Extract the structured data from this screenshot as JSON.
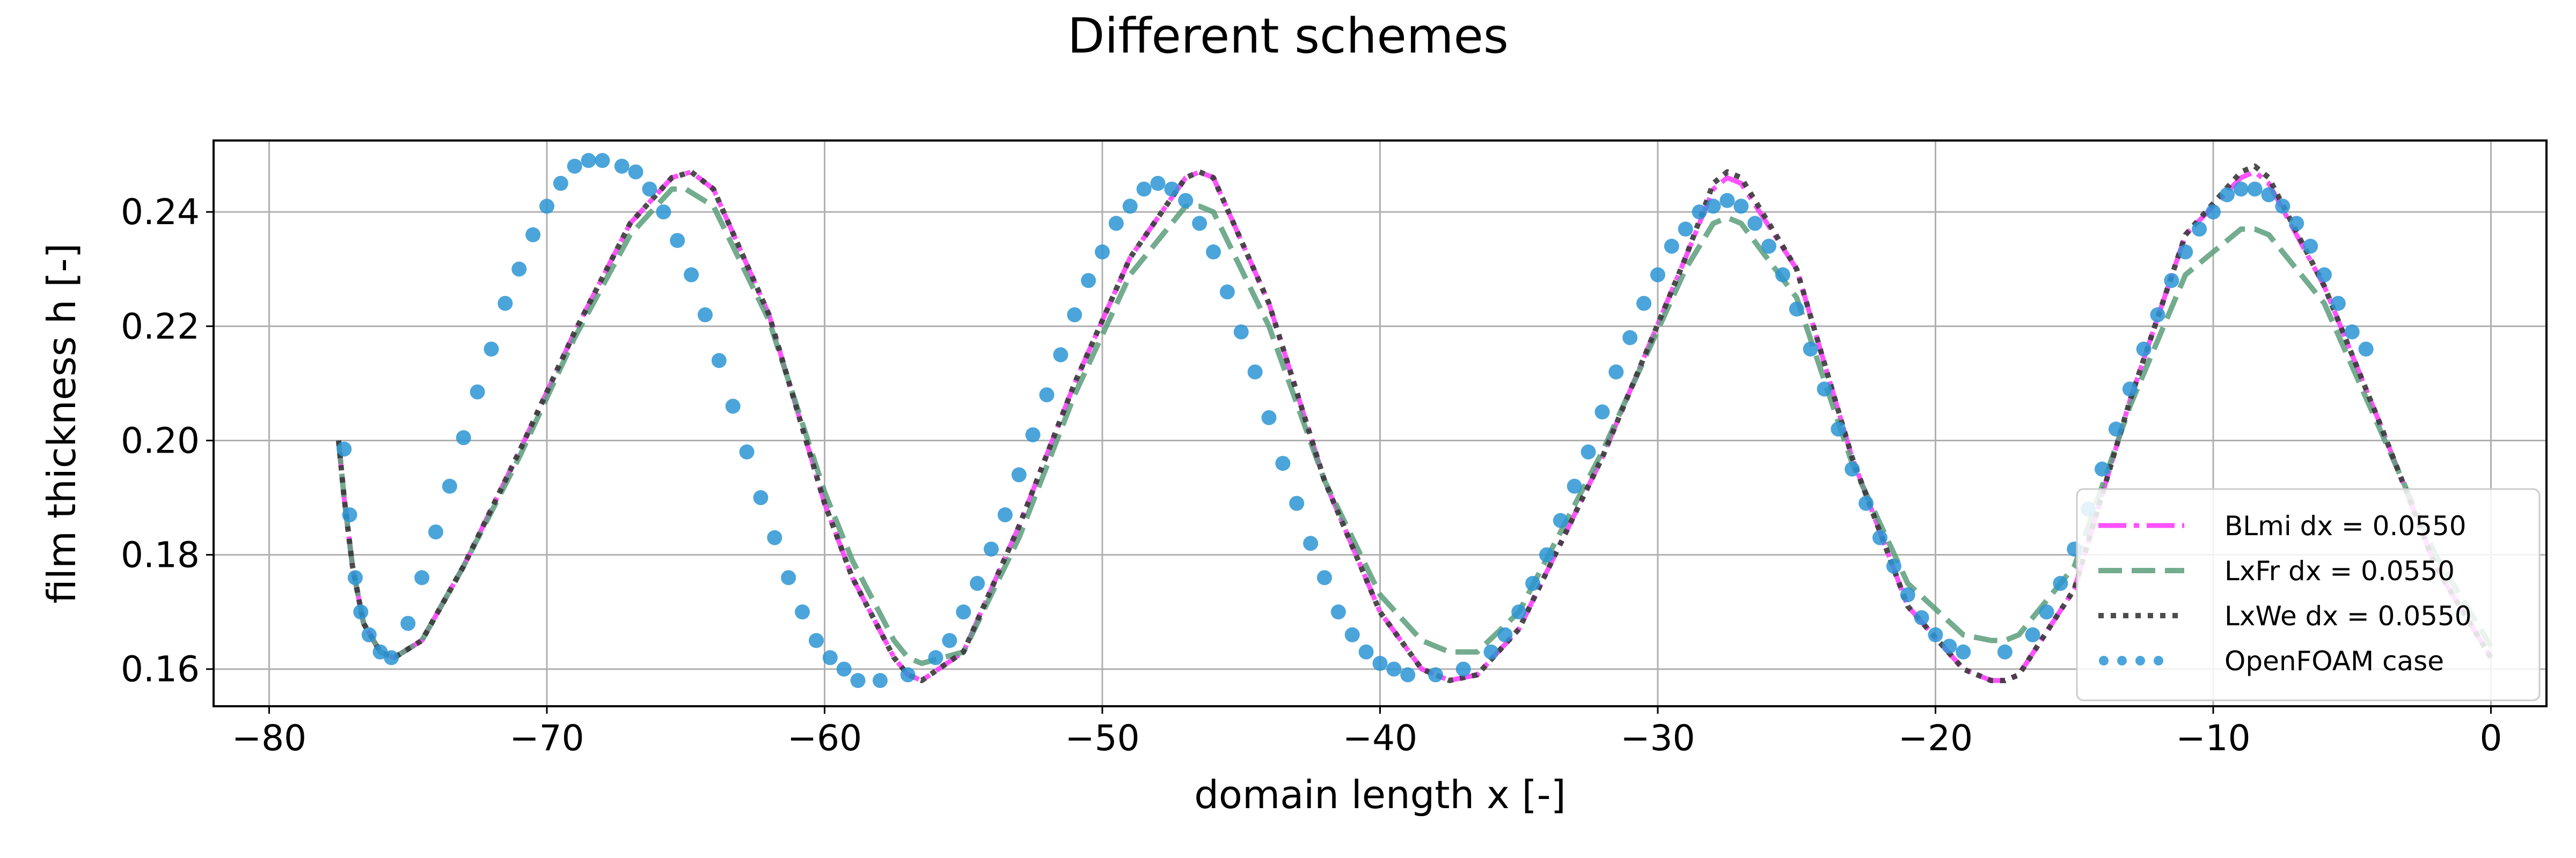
{
  "chart_data": {
    "type": "line",
    "title": "Different schemes",
    "xlabel": "domain length x [-]",
    "ylabel": "film thickness h [-]",
    "xlim": [
      -82,
      2
    ],
    "ylim": [
      0.1535,
      0.2525
    ],
    "xticks": [
      -80,
      -70,
      -60,
      -50,
      -40,
      -30,
      -20,
      -10,
      0
    ],
    "yticks": [
      0.16,
      0.18,
      0.2,
      0.22,
      0.24
    ],
    "xtick_labels": [
      "−80",
      "−70",
      "−60",
      "−50",
      "−40",
      "−30",
      "−20",
      "−10",
      "0"
    ],
    "ytick_labels": [
      "0.16",
      "0.18",
      "0.20",
      "0.22",
      "0.24"
    ],
    "grid": true,
    "legend_position": "lower-right",
    "series": [
      {
        "name": "BLmi dx = 0.0550",
        "color": "#ff33ff",
        "style": "dashdot",
        "x": [
          -77.5,
          -77.3,
          -77.0,
          -76.6,
          -76.0,
          -75.5,
          -74.5,
          -73.0,
          -71.0,
          -69.0,
          -67.0,
          -65.5,
          -64.8,
          -64.0,
          -62.0,
          -60.0,
          -59.0,
          -57.5,
          -57.0,
          -56.5,
          -55.0,
          -53.0,
          -51.0,
          -49.0,
          -47.0,
          -46.5,
          -46.0,
          -44.0,
          -42.0,
          -40.0,
          -38.5,
          -37.5,
          -36.5,
          -35.0,
          -32.0,
          -29.0,
          -28.0,
          -27.5,
          -27.0,
          -25.0,
          -23.0,
          -21.0,
          -19.0,
          -18.0,
          -17.5,
          -17.0,
          -15.0,
          -13.0,
          -11.0,
          -9.0,
          -8.5,
          -8.0,
          -6.0,
          -4.0,
          -2.0,
          0.0
        ],
        "y": [
          0.2,
          0.19,
          0.178,
          0.168,
          0.163,
          0.162,
          0.165,
          0.178,
          0.198,
          0.219,
          0.238,
          0.246,
          0.247,
          0.244,
          0.222,
          0.189,
          0.176,
          0.162,
          0.159,
          0.158,
          0.163,
          0.185,
          0.21,
          0.232,
          0.246,
          0.247,
          0.246,
          0.224,
          0.193,
          0.17,
          0.16,
          0.158,
          0.159,
          0.167,
          0.197,
          0.232,
          0.244,
          0.246,
          0.245,
          0.23,
          0.197,
          0.171,
          0.16,
          0.158,
          0.158,
          0.159,
          0.174,
          0.207,
          0.236,
          0.246,
          0.247,
          0.245,
          0.227,
          0.203,
          0.178,
          0.162
        ]
      },
      {
        "name": "LxFr dx = 0.0550",
        "color": "#5a9e7a",
        "style": "dashed",
        "x": [
          -77.5,
          -77.3,
          -77.0,
          -76.6,
          -76.0,
          -75.5,
          -74.5,
          -73.0,
          -71.0,
          -69.0,
          -67.0,
          -65.5,
          -65.0,
          -64.0,
          -62.0,
          -60.0,
          -59.0,
          -57.5,
          -57.0,
          -56.5,
          -55.0,
          -53.0,
          -51.0,
          -49.0,
          -47.0,
          -46.5,
          -46.0,
          -44.0,
          -42.0,
          -40.0,
          -38.5,
          -37.5,
          -36.5,
          -35.0,
          -32.0,
          -29.0,
          -28.0,
          -27.5,
          -27.0,
          -25.0,
          -23.0,
          -21.0,
          -19.0,
          -18.0,
          -17.5,
          -17.0,
          -15.0,
          -13.0,
          -11.0,
          -9.0,
          -8.5,
          -8.0,
          -6.0,
          -4.0,
          -2.0,
          0.0
        ],
        "y": [
          0.2,
          0.19,
          0.178,
          0.168,
          0.163,
          0.162,
          0.165,
          0.178,
          0.197,
          0.218,
          0.236,
          0.244,
          0.244,
          0.241,
          0.221,
          0.191,
          0.179,
          0.165,
          0.162,
          0.161,
          0.163,
          0.183,
          0.208,
          0.229,
          0.241,
          0.241,
          0.24,
          0.22,
          0.193,
          0.173,
          0.165,
          0.163,
          0.163,
          0.17,
          0.198,
          0.23,
          0.238,
          0.239,
          0.238,
          0.225,
          0.196,
          0.175,
          0.166,
          0.165,
          0.165,
          0.166,
          0.178,
          0.206,
          0.229,
          0.237,
          0.237,
          0.236,
          0.224,
          0.202,
          0.18,
          0.164
        ]
      },
      {
        "name": "LxWe dx = 0.0550",
        "color": "#3a3a3a",
        "style": "dotted",
        "x": [
          -77.5,
          -77.3,
          -77.0,
          -76.6,
          -76.0,
          -75.5,
          -74.5,
          -73.0,
          -71.0,
          -69.0,
          -67.0,
          -65.5,
          -64.8,
          -64.0,
          -62.0,
          -60.0,
          -59.0,
          -57.5,
          -57.0,
          -56.5,
          -55.0,
          -53.0,
          -51.0,
          -49.0,
          -47.0,
          -46.5,
          -46.0,
          -44.0,
          -42.0,
          -40.0,
          -38.5,
          -37.5,
          -36.5,
          -35.0,
          -32.0,
          -29.0,
          -28.0,
          -27.5,
          -27.0,
          -25.0,
          -23.0,
          -21.0,
          -19.0,
          -18.0,
          -17.5,
          -17.0,
          -15.0,
          -13.0,
          -11.0,
          -9.0,
          -8.5,
          -8.0,
          -6.0,
          -4.0,
          -2.0,
          0.0
        ],
        "y": [
          0.2,
          0.19,
          0.178,
          0.168,
          0.163,
          0.162,
          0.165,
          0.178,
          0.198,
          0.219,
          0.238,
          0.246,
          0.247,
          0.244,
          0.222,
          0.189,
          0.176,
          0.162,
          0.159,
          0.158,
          0.163,
          0.185,
          0.21,
          0.232,
          0.246,
          0.247,
          0.246,
          0.224,
          0.193,
          0.17,
          0.16,
          0.158,
          0.159,
          0.167,
          0.197,
          0.232,
          0.245,
          0.247,
          0.246,
          0.23,
          0.197,
          0.171,
          0.16,
          0.158,
          0.158,
          0.159,
          0.174,
          0.207,
          0.236,
          0.247,
          0.248,
          0.246,
          0.227,
          0.203,
          0.178,
          0.162
        ]
      },
      {
        "name": "OpenFOAM case",
        "color": "#2b95d5",
        "style": "markers",
        "x": [
          -77.3,
          -77.1,
          -76.9,
          -76.7,
          -76.4,
          -76.0,
          -75.6,
          -75.0,
          -74.5,
          -74.0,
          -73.5,
          -73.0,
          -72.5,
          -72.0,
          -71.5,
          -71.0,
          -70.5,
          -70.0,
          -69.5,
          -69.0,
          -68.5,
          -68.0,
          -67.3,
          -66.8,
          -66.3,
          -65.8,
          -65.3,
          -64.8,
          -64.3,
          -63.8,
          -63.3,
          -62.8,
          -62.3,
          -61.8,
          -61.3,
          -60.8,
          -60.3,
          -59.8,
          -59.3,
          -58.8,
          -58.0,
          -57.0,
          -56.0,
          -55.5,
          -55.0,
          -54.5,
          -54.0,
          -53.5,
          -53.0,
          -52.5,
          -52.0,
          -51.5,
          -51.0,
          -50.5,
          -50.0,
          -49.5,
          -49.0,
          -48.5,
          -48.0,
          -47.5,
          -47.0,
          -46.5,
          -46.0,
          -45.5,
          -45.0,
          -44.5,
          -44.0,
          -43.5,
          -43.0,
          -42.5,
          -42.0,
          -41.5,
          -41.0,
          -40.5,
          -40.0,
          -39.5,
          -39.0,
          -38.0,
          -37.0,
          -36.0,
          -35.5,
          -35.0,
          -34.5,
          -34.0,
          -33.5,
          -33.0,
          -32.5,
          -32.0,
          -31.5,
          -31.0,
          -30.5,
          -30.0,
          -29.5,
          -29.0,
          -28.5,
          -28.0,
          -27.5,
          -27.0,
          -26.5,
          -26.0,
          -25.5,
          -25.0,
          -24.5,
          -24.0,
          -23.5,
          -23.0,
          -22.5,
          -22.0,
          -21.5,
          -21.0,
          -20.5,
          -20.0,
          -19.5,
          -19.0,
          -17.5,
          -16.5,
          -16.0,
          -15.5,
          -15.0,
          -14.5,
          -14.0,
          -13.5,
          -13.0,
          -12.5,
          -12.0,
          -11.5,
          -11.0,
          -10.5,
          -10.0,
          -9.5,
          -9.0,
          -8.5,
          -8.0,
          -7.5,
          -7.0,
          -6.5,
          -6.0,
          -5.5,
          -5.0,
          -4.5
        ],
        "y": [
          0.1985,
          0.187,
          0.176,
          0.17,
          0.166,
          0.163,
          0.162,
          0.168,
          0.176,
          0.184,
          0.192,
          0.2005,
          0.2085,
          0.216,
          0.224,
          0.23,
          0.236,
          0.241,
          0.245,
          0.248,
          0.249,
          0.249,
          0.248,
          0.247,
          0.244,
          0.24,
          0.235,
          0.229,
          0.222,
          0.214,
          0.206,
          0.198,
          0.19,
          0.183,
          0.176,
          0.17,
          0.165,
          0.162,
          0.16,
          0.158,
          0.158,
          0.159,
          0.162,
          0.165,
          0.17,
          0.175,
          0.181,
          0.187,
          0.194,
          0.201,
          0.208,
          0.215,
          0.222,
          0.228,
          0.233,
          0.238,
          0.241,
          0.244,
          0.245,
          0.244,
          0.242,
          0.238,
          0.233,
          0.226,
          0.219,
          0.212,
          0.204,
          0.196,
          0.189,
          0.182,
          0.176,
          0.17,
          0.166,
          0.163,
          0.161,
          0.16,
          0.159,
          0.159,
          0.16,
          0.163,
          0.166,
          0.17,
          0.175,
          0.18,
          0.186,
          0.192,
          0.198,
          0.205,
          0.212,
          0.218,
          0.224,
          0.229,
          0.234,
          0.237,
          0.24,
          0.241,
          0.242,
          0.241,
          0.238,
          0.234,
          0.229,
          0.223,
          0.216,
          0.209,
          0.202,
          0.195,
          0.189,
          0.183,
          0.178,
          0.173,
          0.169,
          0.166,
          0.164,
          0.163,
          0.163,
          0.166,
          0.17,
          0.175,
          0.181,
          0.188,
          0.195,
          0.202,
          0.209,
          0.216,
          0.222,
          0.228,
          0.233,
          0.237,
          0.24,
          0.243,
          0.244,
          0.244,
          0.243,
          0.241,
          0.238,
          0.234,
          0.229,
          0.224,
          0.219,
          0.216
        ]
      }
    ]
  }
}
